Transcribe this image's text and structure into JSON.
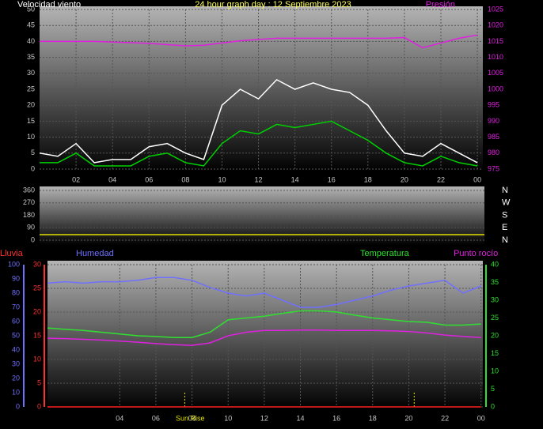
{
  "chart_data": [
    {
      "type": "line",
      "title": "24 hour graph day : 12 Septiembre 2023",
      "y_label": "Velocidad viento",
      "y2_label": "Presión",
      "xlim": [
        0,
        24.3
      ],
      "xticks": [
        {
          "value": 2,
          "label": "02"
        },
        {
          "value": 4,
          "label": "04"
        },
        {
          "value": 6,
          "label": "06"
        },
        {
          "value": 8,
          "label": "08"
        },
        10,
        12,
        14,
        16,
        18,
        20,
        22,
        {
          "value": 24,
          "label": "00"
        }
      ],
      "ylim": [
        0,
        50
      ],
      "yticks": [
        0,
        5,
        10,
        15,
        20,
        25,
        30,
        35,
        40,
        45,
        50
      ],
      "y2lim": [
        975,
        1025
      ],
      "y2ticks": [
        975,
        980,
        985,
        990,
        995,
        1000,
        1005,
        1010,
        1015,
        1020,
        1025
      ],
      "grid": true,
      "x": [
        0,
        1,
        2,
        3,
        4,
        5,
        6,
        7,
        8,
        9,
        10,
        11,
        12,
        13,
        14,
        15,
        16,
        17,
        18,
        19,
        20,
        21,
        22,
        23,
        24
      ],
      "series": [
        {
          "color": "#ffffff",
          "values": [
            5,
            4,
            8,
            2,
            3,
            3,
            7,
            8,
            5,
            3,
            20,
            25,
            22,
            28,
            25,
            27,
            25,
            24,
            20,
            12,
            5,
            4,
            8,
            5,
            2
          ]
        },
        {
          "color": "#00d000",
          "values": [
            2,
            2,
            5,
            1,
            1,
            1,
            4,
            5,
            2,
            1,
            8,
            12,
            11,
            14,
            13,
            14,
            15,
            12,
            9,
            5,
            2,
            1,
            4,
            2,
            1
          ]
        },
        {
          "color": "#e020e0",
          "axis": "y2",
          "values": [
            1015,
            1015,
            1015,
            1015,
            1014.8,
            1014.6,
            1014.4,
            1014,
            1013.6,
            1013.8,
            1014.5,
            1015.2,
            1015.6,
            1016,
            1016,
            1016,
            1016,
            1016,
            1016,
            1016,
            1016.2,
            1013,
            1014.5,
            1016,
            1017
          ]
        }
      ]
    },
    {
      "type": "line",
      "xlim": [
        0,
        24.3
      ],
      "ylim": [
        0,
        360
      ],
      "yticks": [
        0,
        90,
        180,
        270,
        360
      ],
      "y2lim": [
        0,
        360
      ],
      "y2ticks": [
        {
          "value": 360,
          "label": "N"
        },
        {
          "value": 270,
          "label": "W"
        },
        {
          "value": 180,
          "label": "S"
        },
        {
          "value": 90,
          "label": "E"
        },
        {
          "value": 0,
          "label": "N"
        }
      ],
      "grid": true,
      "x": [
        0,
        24.3
      ],
      "series": [
        {
          "color": "#e0e000",
          "values": [
            40,
            40
          ]
        }
      ]
    },
    {
      "type": "line",
      "y_label": "Lluvia",
      "y3_label": "Humedad",
      "y2_label": "Temperatura",
      "y2b_label": "Punto rocío",
      "xlim": [
        0,
        24.1
      ],
      "xticks": [
        {
          "value": 4,
          "label": "04"
        },
        {
          "value": 6,
          "label": "06"
        },
        {
          "value": 8,
          "label": "08"
        },
        10,
        12,
        14,
        16,
        18,
        20,
        22,
        {
          "value": 24,
          "label": "00"
        }
      ],
      "ylim": [
        0,
        30
      ],
      "yticks": [
        0,
        5,
        10,
        15,
        20,
        25,
        30
      ],
      "y3lim": [
        0,
        100
      ],
      "y3ticks": [
        0,
        10,
        20,
        30,
        40,
        50,
        60,
        70,
        80,
        90,
        100
      ],
      "y2lim": [
        0,
        40
      ],
      "y2ticks": [
        0,
        5,
        10,
        15,
        20,
        25,
        30,
        35,
        40
      ],
      "grid": true,
      "annotations": [
        {
          "text": "Sun Rise",
          "x": 7.9
        }
      ],
      "sun_marks": [
        7.6,
        20.3
      ],
      "x": [
        0,
        1,
        2,
        3,
        4,
        5,
        6,
        7,
        8,
        9,
        10,
        11,
        12,
        13,
        14,
        15,
        16,
        17,
        18,
        19,
        20,
        21,
        22,
        23,
        24
      ],
      "series": [
        {
          "color": "#ff2020",
          "values": [
            0,
            0,
            0,
            0,
            0,
            0,
            0,
            0,
            0,
            0,
            0,
            0,
            0,
            0,
            0,
            0,
            0,
            0,
            0,
            0,
            0,
            0,
            0,
            0,
            0
          ]
        },
        {
          "color": "#7070ff",
          "axis": "y3",
          "values": [
            87,
            88,
            87,
            88,
            88,
            89,
            91,
            91,
            89,
            84,
            80,
            78,
            80,
            75,
            70,
            70,
            72,
            75,
            78,
            82,
            85,
            87,
            89,
            80,
            85
          ]
        },
        {
          "color": "#30e030",
          "axis": "y2",
          "values": [
            22.2,
            21.8,
            21.5,
            21,
            20.5,
            20,
            19.8,
            19.5,
            19.5,
            21,
            24.5,
            25,
            25.5,
            26.3,
            27,
            27,
            26.7,
            25.8,
            25,
            24.5,
            24,
            23.8,
            23,
            23,
            23.3
          ]
        },
        {
          "color": "#e020e0",
          "axis": "y2",
          "values": [
            19.3,
            19.2,
            19,
            18.8,
            18.5,
            18.2,
            17.8,
            17.5,
            17.3,
            18,
            20,
            21,
            21.5,
            21.5,
            21.6,
            21.6,
            21.5,
            21.5,
            21.5,
            21.4,
            21.2,
            20.8,
            20.2,
            19.8,
            19.5
          ]
        }
      ]
    }
  ]
}
